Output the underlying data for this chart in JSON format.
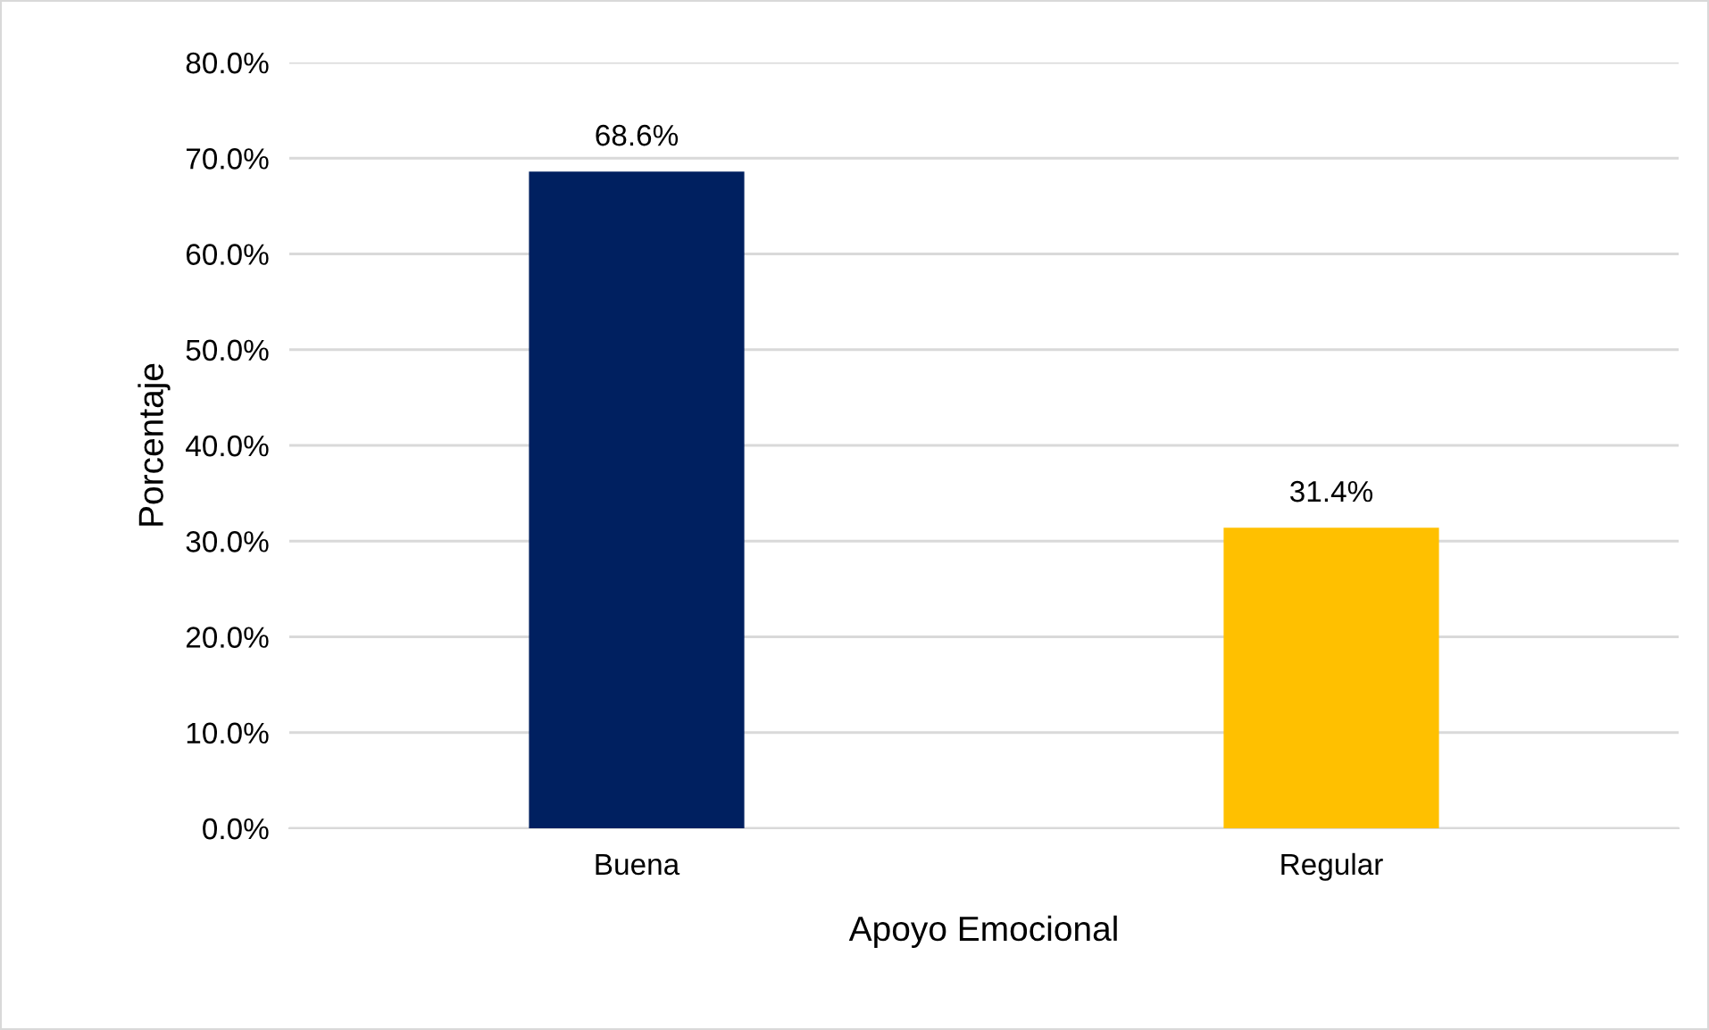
{
  "chart_data": {
    "type": "bar",
    "xlabel": "Apoyo Emocional",
    "ylabel": "Porcentaje",
    "categories": [
      "Buena",
      "Regular"
    ],
    "values": [
      68.6,
      31.4
    ],
    "colors": [
      "#002060",
      "#ffc000"
    ],
    "value_labels": [
      "68.6%",
      "31.4%"
    ],
    "ylim": [
      0,
      80
    ],
    "yticks": [
      {
        "value": 0,
        "label": "0.0%"
      },
      {
        "value": 10,
        "label": "10.0%"
      },
      {
        "value": 20,
        "label": "20.0%"
      },
      {
        "value": 30,
        "label": "30.0%"
      },
      {
        "value": 40,
        "label": "40.0%"
      },
      {
        "value": 50,
        "label": "50.0%"
      },
      {
        "value": 60,
        "label": "60.0%"
      },
      {
        "value": 70,
        "label": "70.0%"
      },
      {
        "value": 80,
        "label": "80.0%"
      }
    ],
    "grid": "y",
    "legend": false
  }
}
